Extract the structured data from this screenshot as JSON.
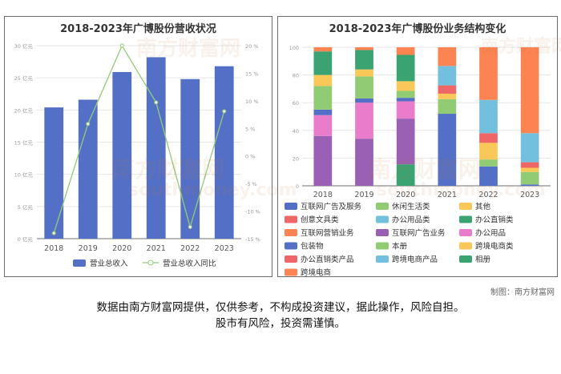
{
  "left_title": "2018-2023年广博股份营收状况",
  "right_title": "2018-2023年广博股份业务结构变化",
  "credit": "制图：南方财富网",
  "disclaimer_line1": "数据由南方财富网提供，仅供参考，不构成投资建议，据此操作，风险自担。",
  "disclaimer_line2": "股市有风险，投资需谨慎。",
  "watermark_text": "南方财富网",
  "watermark_url": "southmoney.com",
  "colors": {
    "bar": "#5470c6",
    "line": "#91cc75",
    "axis_label": "#999999",
    "category_label": "#555555",
    "grid": "#e6e6e6"
  },
  "chart_data": [
    {
      "type": "bar",
      "title": "2018-2023年广博股份营收状况",
      "categories": [
        "2018",
        "2019",
        "2020",
        "2021",
        "2022",
        "2023"
      ],
      "series": [
        {
          "name": "营业总收入",
          "type": "bar",
          "axis": "left",
          "values": [
            20.4,
            21.6,
            25.9,
            28.2,
            24.8,
            26.8
          ]
        },
        {
          "name": "营业总收入同比",
          "type": "line",
          "axis": "right",
          "values": [
            -14,
            5.8,
            20,
            9.7,
            -12.9,
            8.1
          ]
        }
      ],
      "y_left": {
        "min": 0,
        "max": 30,
        "ticks": [
          0,
          5,
          10,
          15,
          20,
          25,
          30
        ],
        "tick_labels": [
          "0 亿元",
          "5 亿元",
          "10 亿元",
          "15 亿元",
          "20 亿元",
          "25 亿元",
          "30 亿元"
        ]
      },
      "y_right": {
        "min": -15,
        "max": 20,
        "ticks": [
          -15,
          -10,
          -5,
          0,
          5,
          10,
          15,
          20
        ],
        "tick_labels": [
          "-15 %",
          "-10 %",
          "-5 %",
          "0 %",
          "5 %",
          "10 %",
          "15 %",
          "20 %"
        ]
      },
      "legend_position": "bottom",
      "grid": true
    },
    {
      "type": "bar",
      "stacked": true,
      "percent": true,
      "title": "2018-2023年广博股份业务结构变化",
      "categories": [
        "2018",
        "2019",
        "2020",
        "2021",
        "2022",
        "2023"
      ],
      "ylim": [
        0,
        100
      ],
      "series": [
        {
          "name": "互联网广告及服务",
          "color": "#5470c6",
          "values": [
            0,
            0,
            0,
            0,
            0,
            0
          ]
        },
        {
          "name": "休闲生活类",
          "color": "#91cc75",
          "values": [
            0,
            0,
            0,
            0,
            0,
            0
          ]
        },
        {
          "name": "其他",
          "color": "#fac858",
          "values": [
            0,
            0,
            0,
            0,
            0,
            0
          ]
        },
        {
          "name": "创意文具类",
          "color": "#ee6666",
          "values": [
            0,
            0,
            0,
            0,
            0,
            0
          ]
        },
        {
          "name": "办公用品类",
          "color": "#73c0de",
          "values": [
            0,
            0,
            0,
            0,
            0,
            0
          ]
        },
        {
          "name": "办公直销类",
          "color": "#3ba272",
          "values": [
            0,
            0,
            15.5,
            0,
            0,
            0
          ]
        },
        {
          "name": "互联网营销业务",
          "color": "#fc8452",
          "values": [
            0,
            0,
            0,
            0,
            0,
            0
          ]
        },
        {
          "name": "互联网广告业务",
          "color": "#9a60b4",
          "values": [
            36,
            34,
            33,
            0,
            0,
            0
          ]
        },
        {
          "name": "办公用品",
          "color": "#ea7ccc",
          "values": [
            15,
            26,
            12.5,
            0,
            0,
            0
          ]
        },
        {
          "name": "包装物",
          "color": "#5470c6",
          "values": [
            4,
            3,
            2.5,
            52,
            14,
            1
          ]
        },
        {
          "name": "本册",
          "color": "#91cc75",
          "values": [
            17,
            16,
            5,
            10.5,
            5,
            9
          ]
        },
        {
          "name": "跨境电商类",
          "color": "#fac858",
          "values": [
            8,
            5,
            7,
            4,
            12,
            3
          ]
        },
        {
          "name": "办公直销类产品",
          "color": "#ee6666",
          "values": [
            0,
            0,
            0,
            6,
            7,
            4
          ]
        },
        {
          "name": "跨境电商产品",
          "color": "#73c0de",
          "values": [
            0,
            0,
            0,
            14,
            24,
            21
          ]
        },
        {
          "name": "相册",
          "color": "#3ba272",
          "values": [
            17,
            14,
            19,
            0,
            0,
            0
          ]
        },
        {
          "name": "跨境电商",
          "color": "#fc8452",
          "values": [
            3,
            2,
            5.5,
            13.5,
            38,
            62
          ]
        }
      ],
      "y_tick_labels": [
        "0",
        "20",
        "40",
        "60",
        "80",
        "100"
      ],
      "legend_position": "bottom",
      "grid": true
    }
  ]
}
